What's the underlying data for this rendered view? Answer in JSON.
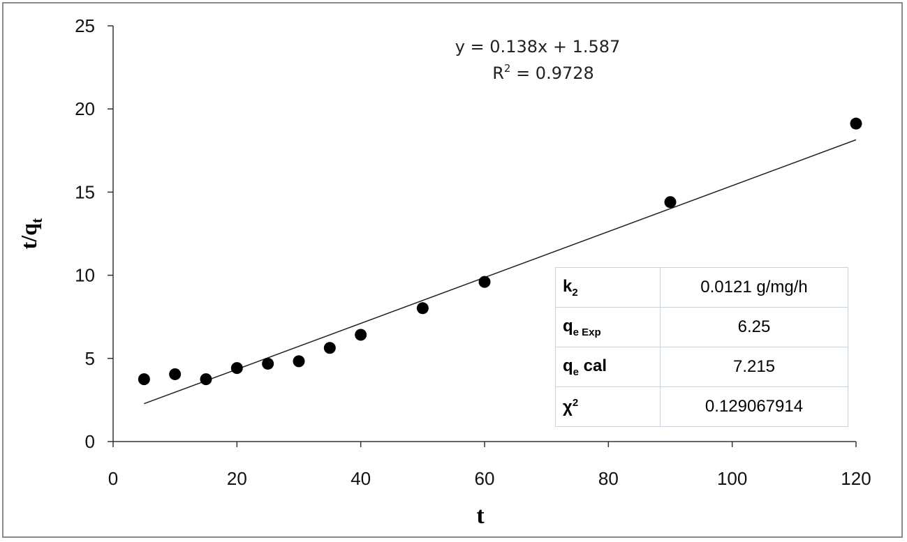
{
  "chart_data": {
    "type": "scatter",
    "title": "",
    "xlabel": "t",
    "ylabel": "t/q",
    "ylabel_sub": "t",
    "xlim": [
      0,
      120
    ],
    "ylim": [
      0,
      25
    ],
    "xticks": [
      0,
      20,
      40,
      60,
      80,
      100,
      120
    ],
    "yticks": [
      0,
      5,
      10,
      15,
      20,
      25
    ],
    "grid": false,
    "legend": "none",
    "series": [
      {
        "x": [
          5,
          10,
          15,
          20,
          25,
          30,
          35,
          40,
          50,
          60,
          90,
          120
        ],
        "y": [
          3.75,
          4.05,
          3.75,
          4.42,
          4.68,
          4.83,
          5.63,
          6.42,
          8.02,
          9.6,
          14.4,
          19.12
        ],
        "marker": "circle",
        "color": "#000000"
      }
    ],
    "trendline": {
      "slope": 0.138,
      "intercept": 1.587,
      "x_range": [
        5,
        120
      ],
      "equation": "y = 0.138x + 1.587",
      "r2_prefix": "R",
      "r2_value": " = 0.9728",
      "color": "#222222"
    }
  },
  "stats_table": {
    "rows": [
      {
        "param": "k",
        "param_sub": "2",
        "param_sup": "",
        "param_suffix": "",
        "value": "0.0121 g/mg/h"
      },
      {
        "param": "q",
        "param_sub": "e Exp",
        "param_sup": "",
        "param_suffix": "",
        "value": "6.25"
      },
      {
        "param": "q",
        "param_sub": "e",
        "param_sup": "",
        "param_suffix": " cal",
        "value": "7.215"
      },
      {
        "param": "χ",
        "param_sub": "",
        "param_sup": "2",
        "param_suffix": "",
        "value": "0.129067914"
      }
    ]
  }
}
